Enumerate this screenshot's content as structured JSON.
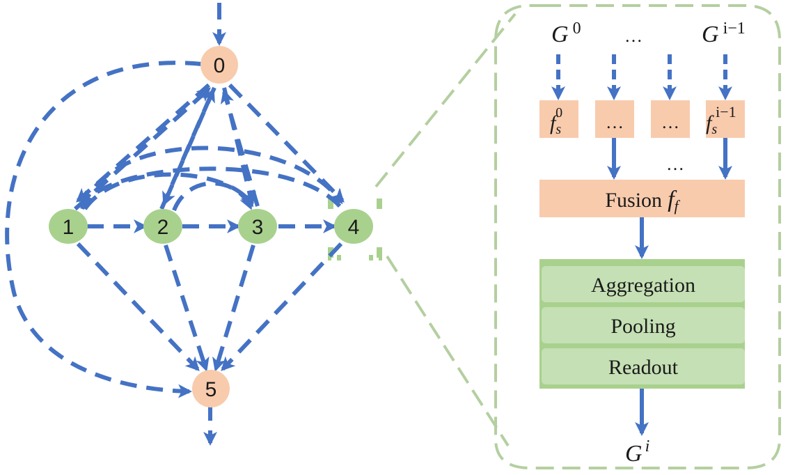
{
  "graph": {
    "nodes": [
      {
        "id": "0",
        "label": "0",
        "kind": "input"
      },
      {
        "id": "1",
        "label": "1",
        "kind": "cell"
      },
      {
        "id": "2",
        "label": "2",
        "kind": "cell"
      },
      {
        "id": "3",
        "label": "3",
        "kind": "cell"
      },
      {
        "id": "4",
        "label": "4",
        "kind": "cell"
      },
      {
        "id": "5",
        "label": "5",
        "kind": "output"
      }
    ]
  },
  "detail": {
    "inputs": {
      "first": {
        "base": "G",
        "sup": "0"
      },
      "ellipsis": "…",
      "last": {
        "base": "G",
        "sup": "i−1"
      }
    },
    "selectors": {
      "first": {
        "base": "f",
        "sub": "s",
        "sup": "0"
      },
      "mid_ellipsis": "…",
      "last": {
        "base": "f",
        "sub": "s",
        "sup": "i−1"
      }
    },
    "arrow_ellipsis": "…",
    "fusion": {
      "label": "Fusion",
      "base": "f",
      "sub": "f"
    },
    "ops": [
      "Aggregation",
      "Pooling",
      "Readout"
    ],
    "output": {
      "base": "G",
      "sup": "i"
    }
  },
  "colors": {
    "edge": "#4472c4",
    "cell_fill": "#a9d18e",
    "io_fill": "#f8cbad",
    "stack_fill": "#c5e0b4",
    "stack_edge": "#70ad47",
    "zoom_frame": "#b4cfa0"
  }
}
